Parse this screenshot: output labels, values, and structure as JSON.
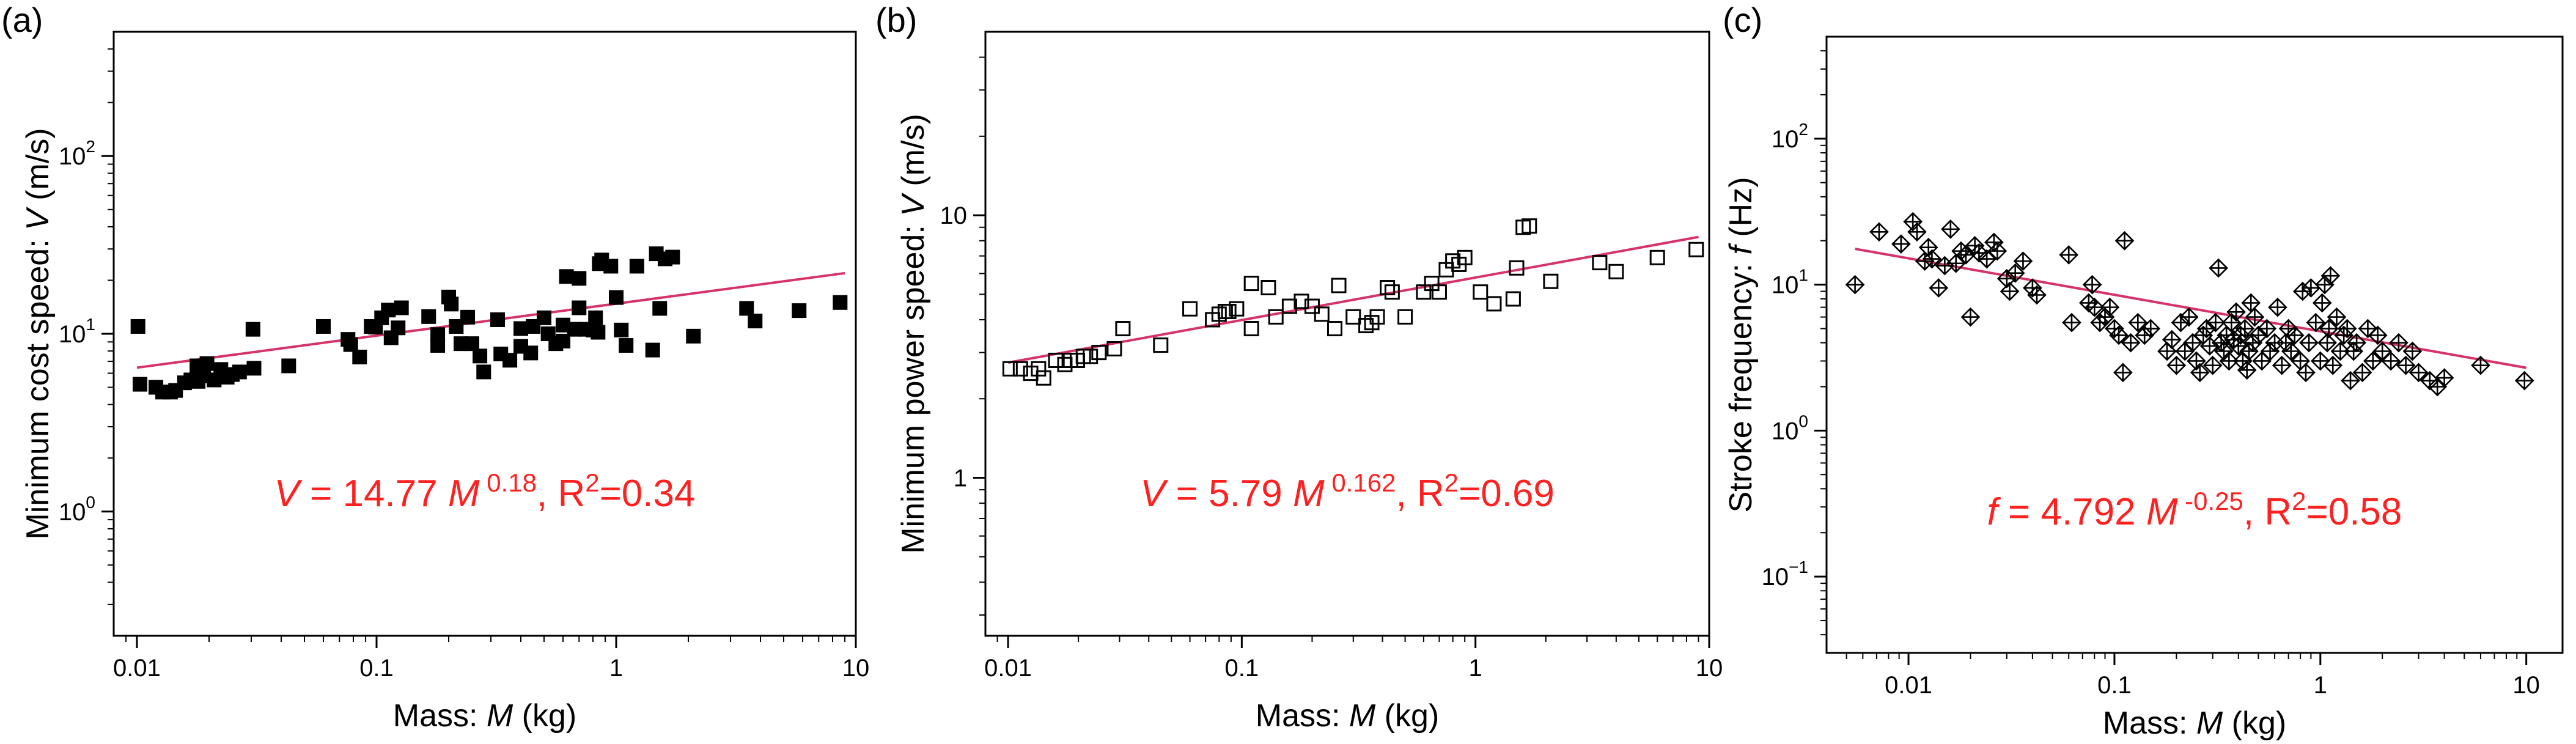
{
  "chart_data": [
    {
      "type": "scatter",
      "panel_label": "(a)",
      "title": "",
      "xlabel": "Mass: ",
      "xlabel_var": "M",
      "xlabel_unit": " (kg)",
      "ylabel": "Minimum cost speed: ",
      "ylabel_var": "V",
      "ylabel_unit": " (m/s)",
      "xscale": "log",
      "yscale": "log",
      "xlim": [
        0.008,
        10
      ],
      "ylim": [
        0.2,
        500
      ],
      "xticks": [
        {
          "v": 0.01,
          "t": "0.01"
        },
        {
          "v": 0.1,
          "t": "0.1"
        },
        {
          "v": 1,
          "t": "1"
        },
        {
          "v": 10,
          "t": "10"
        }
      ],
      "yticks": [
        {
          "v": 1,
          "b": "10",
          "e": "0"
        },
        {
          "v": 10,
          "b": "10",
          "e": "1"
        },
        {
          "v": 100,
          "b": "10",
          "e": "2"
        }
      ],
      "marker": "filled-square",
      "fit": {
        "coef": 14.77,
        "exp": 0.18,
        "from": 0.01,
        "to": 9
      },
      "annotation": {
        "var": "V",
        "mid": " = 14.77 ",
        "var2": "M",
        "exp": " 0.18",
        "r2_pre": ",  R",
        "r2_sup": "2",
        "r2_post": "=0.34"
      },
      "points": [
        [
          0.0101,
          11.0
        ],
        [
          0.0103,
          5.2
        ],
        [
          0.012,
          5.0
        ],
        [
          0.0128,
          4.7
        ],
        [
          0.0138,
          4.7
        ],
        [
          0.0145,
          4.8
        ],
        [
          0.0158,
          5.3
        ],
        [
          0.0168,
          5.5
        ],
        [
          0.0178,
          6.6
        ],
        [
          0.018,
          5.4
        ],
        [
          0.019,
          5.8
        ],
        [
          0.0196,
          6.8
        ],
        [
          0.021,
          5.5
        ],
        [
          0.0224,
          6.3
        ],
        [
          0.0238,
          5.7
        ],
        [
          0.025,
          5.9
        ],
        [
          0.0268,
          6.1
        ],
        [
          0.0305,
          10.6
        ],
        [
          0.0308,
          6.4
        ],
        [
          0.043,
          6.6
        ],
        [
          0.06,
          11.0
        ],
        [
          0.076,
          9.3
        ],
        [
          0.078,
          8.7
        ],
        [
          0.085,
          7.4
        ],
        [
          0.095,
          11.0
        ],
        [
          0.099,
          10.9
        ],
        [
          0.105,
          12.3
        ],
        [
          0.112,
          13.6
        ],
        [
          0.115,
          9.5
        ],
        [
          0.123,
          10.8
        ],
        [
          0.127,
          14.0
        ],
        [
          0.165,
          12.5
        ],
        [
          0.18,
          9.9
        ],
        [
          0.18,
          8.6
        ],
        [
          0.2,
          16.1
        ],
        [
          0.205,
          14.7
        ],
        [
          0.215,
          11.0
        ],
        [
          0.225,
          8.8
        ],
        [
          0.24,
          12.4
        ],
        [
          0.25,
          8.8
        ],
        [
          0.27,
          7.5
        ],
        [
          0.28,
          6.1
        ],
        [
          0.32,
          12.0
        ],
        [
          0.33,
          7.7
        ],
        [
          0.36,
          7.1
        ],
        [
          0.4,
          8.5
        ],
        [
          0.4,
          10.7
        ],
        [
          0.44,
          7.8
        ],
        [
          0.45,
          11.0
        ],
        [
          0.5,
          12.3
        ],
        [
          0.52,
          10.0
        ],
        [
          0.56,
          8.8
        ],
        [
          0.6,
          9.1
        ],
        [
          0.6,
          11.2
        ],
        [
          0.62,
          21.0
        ],
        [
          0.67,
          10.6
        ],
        [
          0.7,
          20.5
        ],
        [
          0.7,
          14.0
        ],
        [
          0.75,
          10.6
        ],
        [
          0.8,
          10.5
        ],
        [
          0.82,
          12.3
        ],
        [
          0.84,
          10.2
        ],
        [
          0.85,
          24.8
        ],
        [
          0.87,
          26.0
        ],
        [
          0.95,
          24.0
        ],
        [
          1.0,
          16.0
        ],
        [
          1.05,
          10.5
        ],
        [
          1.1,
          8.6
        ],
        [
          1.22,
          24.0
        ],
        [
          1.42,
          8.1
        ],
        [
          1.47,
          28.2
        ],
        [
          1.52,
          13.9
        ],
        [
          1.6,
          26.4
        ],
        [
          1.72,
          27.0
        ],
        [
          2.1,
          9.7
        ],
        [
          3.5,
          13.9
        ],
        [
          3.8,
          11.8
        ],
        [
          5.8,
          13.5
        ],
        [
          8.6,
          15.0
        ]
      ]
    },
    {
      "type": "scatter",
      "panel_label": "(b)",
      "title": "",
      "xlabel": "Mass: ",
      "xlabel_var": "M",
      "xlabel_unit": " (kg)",
      "ylabel": "Minimum power speed: ",
      "ylabel_var": "V",
      "ylabel_unit": " (m/s)",
      "xscale": "log",
      "yscale": "log",
      "xlim": [
        0.008,
        10
      ],
      "ylim": [
        0.25,
        50
      ],
      "xticks": [
        {
          "v": 0.01,
          "t": "0.01"
        },
        {
          "v": 0.1,
          "t": "0.1"
        },
        {
          "v": 1,
          "t": "1"
        },
        {
          "v": 10,
          "t": "10"
        }
      ],
      "yticks": [
        {
          "v": 1,
          "t": "1"
        },
        {
          "v": 10,
          "t": "10"
        }
      ],
      "marker": "open-square",
      "fit": {
        "coef": 5.79,
        "exp": 0.162,
        "from": 0.01,
        "to": 9
      },
      "annotation": {
        "var": "V",
        "mid": " = 5.79 ",
        "var2": "M",
        "exp": " 0.162",
        "r2_pre": ",  R",
        "r2_sup": "2",
        "r2_post": "=0.69"
      },
      "points": [
        [
          0.0102,
          2.6
        ],
        [
          0.0113,
          2.6
        ],
        [
          0.0125,
          2.5
        ],
        [
          0.0135,
          2.6
        ],
        [
          0.0142,
          2.4
        ],
        [
          0.016,
          2.8
        ],
        [
          0.0175,
          2.7
        ],
        [
          0.0185,
          2.8
        ],
        [
          0.0198,
          2.8
        ],
        [
          0.021,
          2.9
        ],
        [
          0.0225,
          2.9
        ],
        [
          0.0245,
          3.0
        ],
        [
          0.0285,
          3.1
        ],
        [
          0.031,
          3.7
        ],
        [
          0.045,
          3.2
        ],
        [
          0.06,
          4.4
        ],
        [
          0.075,
          4.0
        ],
        [
          0.08,
          4.2
        ],
        [
          0.085,
          4.3
        ],
        [
          0.088,
          4.3
        ],
        [
          0.095,
          4.4
        ],
        [
          0.11,
          3.7
        ],
        [
          0.11,
          5.5
        ],
        [
          0.13,
          5.3
        ],
        [
          0.14,
          4.1
        ],
        [
          0.16,
          4.5
        ],
        [
          0.18,
          4.7
        ],
        [
          0.2,
          4.5
        ],
        [
          0.22,
          4.2
        ],
        [
          0.25,
          3.7
        ],
        [
          0.26,
          5.4
        ],
        [
          0.3,
          4.1
        ],
        [
          0.34,
          3.8
        ],
        [
          0.36,
          3.9
        ],
        [
          0.38,
          4.1
        ],
        [
          0.42,
          5.3
        ],
        [
          0.44,
          5.1
        ],
        [
          0.5,
          4.1
        ],
        [
          0.6,
          5.1
        ],
        [
          0.65,
          5.5
        ],
        [
          0.7,
          5.1
        ],
        [
          0.75,
          6.2
        ],
        [
          0.8,
          6.7
        ],
        [
          0.85,
          6.5
        ],
        [
          0.9,
          6.9
        ],
        [
          1.05,
          5.1
        ],
        [
          1.2,
          4.6
        ],
        [
          1.45,
          4.8
        ],
        [
          1.5,
          6.3
        ],
        [
          1.6,
          9.0
        ],
        [
          1.7,
          9.1
        ],
        [
          2.1,
          5.6
        ],
        [
          3.4,
          6.6
        ],
        [
          4.0,
          6.1
        ],
        [
          6.0,
          6.9
        ],
        [
          8.8,
          7.4
        ]
      ]
    },
    {
      "type": "scatter",
      "panel_label": "(c)",
      "title": "",
      "xlabel": "Mass: ",
      "xlabel_var": "M",
      "xlabel_unit": " (kg)",
      "ylabel": "Stroke frequency: ",
      "ylabel_var": "f",
      "ylabel_unit": " (Hz)",
      "xscale": "log",
      "yscale": "log",
      "xlim": [
        0.004,
        15
      ],
      "ylim": [
        0.03,
        500
      ],
      "xticks": [
        {
          "v": 0.01,
          "t": "0.01"
        },
        {
          "v": 0.1,
          "t": "0.1"
        },
        {
          "v": 1,
          "t": "1"
        },
        {
          "v": 10,
          "t": "10"
        }
      ],
      "yticks": [
        {
          "v": 0.1,
          "b": "10",
          "e": "−1"
        },
        {
          "v": 1,
          "b": "10",
          "e": "0"
        },
        {
          "v": 10,
          "b": "10",
          "e": "1"
        },
        {
          "v": 100,
          "b": "10",
          "e": "2"
        }
      ],
      "marker": "crossed-diamond",
      "fit": {
        "coef": 4.792,
        "exp": -0.25,
        "from": 0.0055,
        "to": 10
      },
      "annotation": {
        "var": "f",
        "mid": " = 4.792 ",
        "var2": "M",
        "exp": " -0.25",
        "r2_pre": ",  R",
        "r2_sup": "2",
        "r2_post": "=0.58"
      },
      "points": [
        [
          0.0055,
          10.0
        ],
        [
          0.0072,
          23.0
        ],
        [
          0.0092,
          19.0
        ],
        [
          0.0105,
          27.0
        ],
        [
          0.011,
          23.0
        ],
        [
          0.012,
          14.5
        ],
        [
          0.0125,
          18.0
        ],
        [
          0.013,
          15.0
        ],
        [
          0.014,
          9.5
        ],
        [
          0.015,
          13.5
        ],
        [
          0.016,
          24.0
        ],
        [
          0.017,
          14.0
        ],
        [
          0.018,
          17.0
        ],
        [
          0.019,
          16.0
        ],
        [
          0.02,
          6.0
        ],
        [
          0.021,
          18.5
        ],
        [
          0.022,
          16.5
        ],
        [
          0.024,
          15.0
        ],
        [
          0.026,
          19.5
        ],
        [
          0.027,
          17.0
        ],
        [
          0.03,
          11.0
        ],
        [
          0.031,
          9.0
        ],
        [
          0.033,
          12.0
        ],
        [
          0.036,
          14.5
        ],
        [
          0.04,
          9.5
        ],
        [
          0.042,
          8.5
        ],
        [
          0.06,
          16.0
        ],
        [
          0.062,
          5.5
        ],
        [
          0.075,
          7.5
        ],
        [
          0.078,
          10.0
        ],
        [
          0.08,
          7.0
        ],
        [
          0.085,
          5.5
        ],
        [
          0.09,
          6.0
        ],
        [
          0.095,
          7.0
        ],
        [
          0.1,
          5.0
        ],
        [
          0.105,
          4.5
        ],
        [
          0.11,
          2.5
        ],
        [
          0.112,
          20.0
        ],
        [
          0.12,
          4.0
        ],
        [
          0.13,
          5.5
        ],
        [
          0.14,
          4.5
        ],
        [
          0.15,
          5.0
        ],
        [
          0.18,
          3.5
        ],
        [
          0.19,
          4.2
        ],
        [
          0.2,
          2.8
        ],
        [
          0.21,
          5.5
        ],
        [
          0.22,
          3.5
        ],
        [
          0.23,
          6.0
        ],
        [
          0.24,
          4.0
        ],
        [
          0.25,
          3.0
        ],
        [
          0.26,
          2.5
        ],
        [
          0.27,
          4.5
        ],
        [
          0.28,
          5.0
        ],
        [
          0.29,
          3.8
        ],
        [
          0.3,
          2.8
        ],
        [
          0.31,
          5.5
        ],
        [
          0.32,
          13.0
        ],
        [
          0.33,
          4.0
        ],
        [
          0.34,
          3.5
        ],
        [
          0.35,
          4.5
        ],
        [
          0.36,
          3.0
        ],
        [
          0.37,
          5.5
        ],
        [
          0.38,
          4.2
        ],
        [
          0.39,
          6.5
        ],
        [
          0.4,
          3.8
        ],
        [
          0.41,
          4.5
        ],
        [
          0.42,
          3.0
        ],
        [
          0.43,
          5.0
        ],
        [
          0.44,
          2.6
        ],
        [
          0.45,
          3.5
        ],
        [
          0.46,
          7.5
        ],
        [
          0.47,
          4.0
        ],
        [
          0.48,
          6.0
        ],
        [
          0.5,
          4.5
        ],
        [
          0.52,
          3.0
        ],
        [
          0.55,
          5.0
        ],
        [
          0.57,
          3.5
        ],
        [
          0.6,
          4.0
        ],
        [
          0.62,
          7.0
        ],
        [
          0.65,
          2.8
        ],
        [
          0.68,
          4.0
        ],
        [
          0.7,
          5.0
        ],
        [
          0.72,
          3.5
        ],
        [
          0.75,
          4.5
        ],
        [
          0.8,
          3.0
        ],
        [
          0.82,
          9.0
        ],
        [
          0.85,
          2.5
        ],
        [
          0.88,
          4.0
        ],
        [
          0.9,
          9.5
        ],
        [
          0.95,
          5.5
        ],
        [
          1.0,
          3.0
        ],
        [
          1.02,
          7.5
        ],
        [
          1.05,
          10.0
        ],
        [
          1.08,
          4.0
        ],
        [
          1.1,
          5.0
        ],
        [
          1.12,
          11.5
        ],
        [
          1.15,
          2.8
        ],
        [
          1.2,
          6.0
        ],
        [
          1.25,
          3.5
        ],
        [
          1.3,
          4.5
        ],
        [
          1.35,
          5.0
        ],
        [
          1.4,
          2.2
        ],
        [
          1.45,
          3.5
        ],
        [
          1.5,
          4.0
        ],
        [
          1.6,
          2.5
        ],
        [
          1.7,
          5.0
        ],
        [
          1.8,
          3.0
        ],
        [
          1.9,
          4.5
        ],
        [
          2.0,
          3.5
        ],
        [
          2.2,
          3.0
        ],
        [
          2.4,
          4.0
        ],
        [
          2.6,
          2.8
        ],
        [
          2.8,
          3.5
        ],
        [
          3.0,
          2.5
        ],
        [
          3.4,
          2.2
        ],
        [
          3.7,
          2.0
        ],
        [
          4.0,
          2.3
        ],
        [
          6.0,
          2.8
        ],
        [
          9.8,
          2.2
        ]
      ]
    }
  ]
}
